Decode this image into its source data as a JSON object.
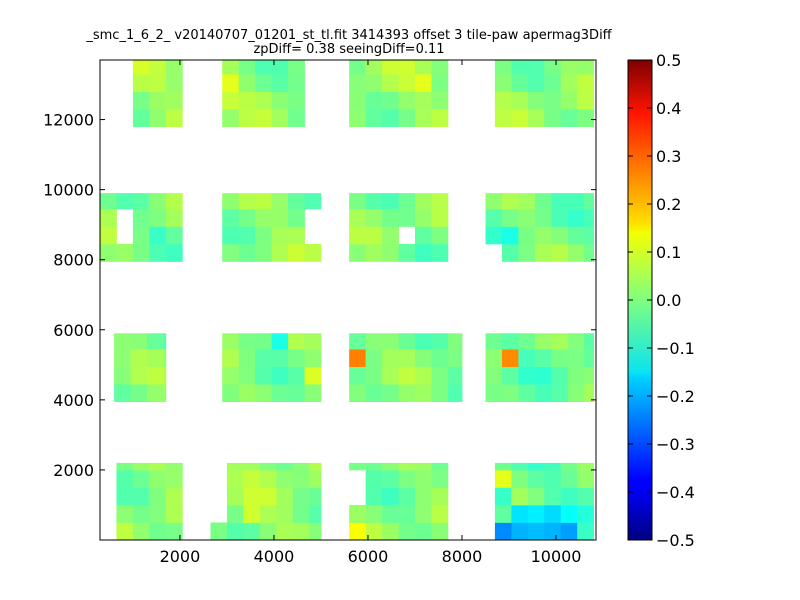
{
  "chart_data": {
    "type": "heatmap",
    "title": "_smc_1_6_2_ v20140707_01201_st_tl.fit 3414393 offset 3 tile-paw apermag3Diff",
    "subtitle": "zpDiff= 0.38 seeingDiff=0.11",
    "xlabel": "",
    "ylabel": "",
    "xlim": [
      300,
      10850
    ],
    "ylim": [
      0,
      13700
    ],
    "x_ticks": [
      2000,
      4000,
      6000,
      8000,
      10000
    ],
    "y_ticks": [
      2000,
      4000,
      6000,
      8000,
      10000,
      12000
    ],
    "x_tick_labels": [
      "2000",
      "4000",
      "6000",
      "8000",
      "10000"
    ],
    "y_tick_labels": [
      "2000",
      "4000",
      "6000",
      "8000",
      "10000",
      "12000"
    ],
    "grid": false,
    "colormap": "jet",
    "color_range": [
      -0.5,
      0.5
    ],
    "colorbar_ticks": [
      -0.5,
      -0.4,
      -0.3,
      -0.2,
      -0.1,
      0.0,
      0.1,
      0.2,
      0.3,
      0.4,
      0.5
    ],
    "colorbar_tick_labels": [
      "−0.5",
      "−0.4",
      "−0.3",
      "−0.2",
      "−0.1",
      "0.0",
      "0.1",
      "0.2",
      "0.3",
      "0.4",
      "0.5"
    ],
    "cell_size": [
      350,
      500
    ],
    "blocks": [
      {
        "x0": 1000,
        "x1": 2050,
        "y0": 11800,
        "y1": 13700,
        "base": 0.02
      },
      {
        "x0": 2900,
        "x1": 4650,
        "y0": 11800,
        "y1": 13700,
        "base": 0.01
      },
      {
        "x0": 5600,
        "x1": 7700,
        "y0": 11800,
        "y1": 13700,
        "base": 0.02
      },
      {
        "x0": 8700,
        "x1": 10800,
        "y0": 11800,
        "y1": 13700,
        "base": 0.01
      },
      {
        "x0": 300,
        "x1": 2050,
        "y0": 7950,
        "y1": 9900,
        "base": 0.0
      },
      {
        "x0": 2900,
        "x1": 5000,
        "y0": 7950,
        "y1": 9900,
        "base": 0.01
      },
      {
        "x0": 5600,
        "x1": 7700,
        "y0": 7950,
        "y1": 9900,
        "base": 0.0
      },
      {
        "x0": 8500,
        "x1": 10800,
        "y0": 7950,
        "y1": 9900,
        "base": -0.01
      },
      {
        "x0": 600,
        "x1": 1700,
        "y0": 3950,
        "y1": 5900,
        "base": 0.0
      },
      {
        "x0": 2900,
        "x1": 5000,
        "y0": 3950,
        "y1": 5900,
        "base": 0.0
      },
      {
        "x0": 5600,
        "x1": 8000,
        "y0": 3950,
        "y1": 5900,
        "base": 0.0
      },
      {
        "x0": 8500,
        "x1": 10800,
        "y0": 3950,
        "y1": 5900,
        "base": -0.02
      },
      {
        "x0": 300,
        "x1": 2050,
        "y0": 0,
        "y1": 2200,
        "base": 0.01
      },
      {
        "x0": 2650,
        "x1": 5000,
        "y0": 0,
        "y1": 2200,
        "base": 0.02
      },
      {
        "x0": 5600,
        "x1": 7700,
        "y0": 0,
        "y1": 2200,
        "base": 0.0
      },
      {
        "x0": 8700,
        "x1": 10800,
        "y0": 0,
        "y1": 2200,
        "base": -0.03
      }
    ],
    "special_cells": [
      {
        "x": 2050,
        "y": 13450,
        "value": 0.06
      },
      {
        "x": 3100,
        "y": 13000,
        "value": 0.1
      },
      {
        "x": 7250,
        "y": 12950,
        "value": 0.1
      },
      {
        "x": 3100,
        "y": 12450,
        "value": 0.07
      },
      {
        "x": 2050,
        "y": 10050,
        "value": 0.09
      },
      {
        "x": 4050,
        "y": 10050,
        "value": -0.17
      },
      {
        "x": 4750,
        "y": 10050,
        "value": 0.06
      },
      {
        "x": 5100,
        "y": 9650,
        "value": -0.22
      },
      {
        "x": 2050,
        "y": 9300,
        "value": 0.14
      },
      {
        "x": 2050,
        "y": 8900,
        "value": -0.06
      },
      {
        "x": 1500,
        "y": 8650,
        "value": -0.07
      },
      {
        "x": 8900,
        "y": 8900,
        "value": -0.1
      },
      {
        "x": 4050,
        "y": 5650,
        "value": -0.1
      },
      {
        "x": 5750,
        "y": 5400,
        "value": 0.25
      },
      {
        "x": 8900,
        "y": 5050,
        "value": 0.24
      },
      {
        "x": 4750,
        "y": 4650,
        "value": 0.09
      },
      {
        "x": 2050,
        "y": 1950,
        "value": -0.13
      },
      {
        "x": 5750,
        "y": 1950,
        "value": -0.2
      },
      {
        "x": 8900,
        "y": 1950,
        "value": 0.1
      },
      {
        "x": 5750,
        "y": 250,
        "value": 0.12
      },
      {
        "x": 2050,
        "y": 250,
        "value": 0.11
      },
      {
        "x": 3500,
        "y": 600,
        "value": 0.08
      },
      {
        "x": 5100,
        "y": 600,
        "value": -0.08
      },
      {
        "x": 8900,
        "y": 250,
        "value": -0.24
      },
      {
        "x": 9250,
        "y": 250,
        "value": -0.2
      },
      {
        "x": 9600,
        "y": 250,
        "value": -0.19
      },
      {
        "x": 9950,
        "y": 250,
        "value": -0.2
      },
      {
        "x": 10300,
        "y": 250,
        "value": -0.22
      },
      {
        "x": 9250,
        "y": 600,
        "value": -0.15
      },
      {
        "x": 9600,
        "y": 600,
        "value": -0.14
      },
      {
        "x": 9950,
        "y": 600,
        "value": -0.16
      },
      {
        "x": 10300,
        "y": 600,
        "value": -0.12
      },
      {
        "x": 8900,
        "y": 1100,
        "value": -0.07
      }
    ],
    "holes": [
      {
        "x0": 7550,
        "x1": 8000,
        "y0": 12200,
        "y1": 13350
      },
      {
        "x0": 700,
        "x1": 1000,
        "y0": 8300,
        "y1": 9600
      },
      {
        "x0": 4650,
        "x1": 5000,
        "y0": 8300,
        "y1": 9600
      },
      {
        "x0": 6800,
        "x1": 7100,
        "y0": 8300,
        "y1": 9100
      },
      {
        "x0": 8500,
        "x1": 8700,
        "y0": 7950,
        "y1": 8500
      },
      {
        "x0": 300,
        "x1": 600,
        "y0": 200,
        "y1": 2200
      },
      {
        "x0": 5600,
        "x1": 5900,
        "y0": 1200,
        "y1": 1800
      },
      {
        "x0": 2650,
        "x1": 2900,
        "y0": 700,
        "y1": 2200
      },
      {
        "x0": 8700,
        "x1": 9050,
        "y0": 450,
        "y1": 700
      }
    ]
  }
}
